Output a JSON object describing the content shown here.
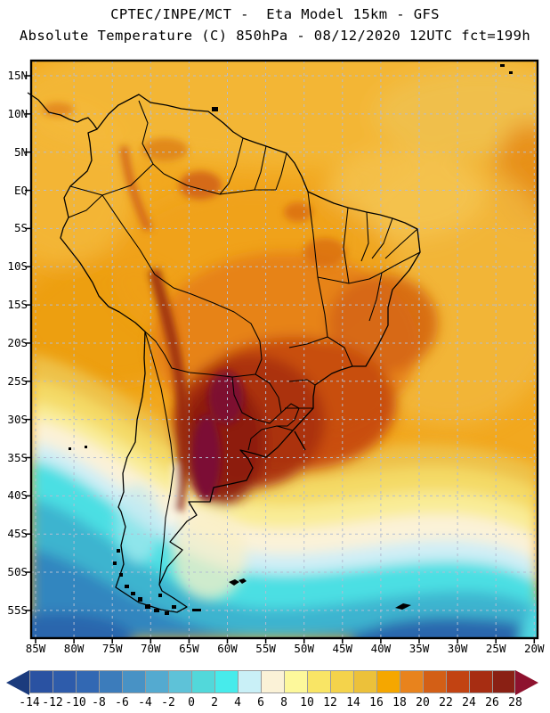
{
  "header": {
    "title_line1": "CPTEC/INPE/MCT -  Eta Model 15km - GFS",
    "title_line2": "Absolute Temperature (C) 850hPa - 08/12/2020 12UTC fct=199h"
  },
  "map": {
    "lat_tick_labels": [
      "15N",
      "10N",
      "5N",
      "EQ",
      "5S",
      "10S",
      "15S",
      "20S",
      "25S",
      "30S",
      "35S",
      "40S",
      "45S",
      "50S",
      "55S"
    ],
    "lon_tick_labels": [
      "85W",
      "80W",
      "75W",
      "70W",
      "65W",
      "60W",
      "55W",
      "50W",
      "45W",
      "40W",
      "35W",
      "30W",
      "25W",
      "20W"
    ],
    "grid_color": "#b3bdd2",
    "coastline_color": "#000000",
    "frame_color": "#000000"
  },
  "colorbar": {
    "tick_labels": [
      "-14",
      "-12",
      "-10",
      "-8",
      "-6",
      "-4",
      "-2",
      "0",
      "2",
      "4",
      "6",
      "8",
      "10",
      "12",
      "14",
      "16",
      "18",
      "20",
      "22",
      "24",
      "26",
      "28"
    ],
    "box_colors": [
      "#2a52a2",
      "#2e5cab",
      "#3268b3",
      "#3c7cbb",
      "#4892c5",
      "#54aad0",
      "#5ec2d8",
      "#52d8da",
      "#47ebeb",
      "#c9f0f7",
      "#fbf2d7",
      "#fdf89b",
      "#f9e565",
      "#f4d34b",
      "#ecc13a",
      "#f5a700",
      "#e8831d",
      "#d35f16",
      "#c24312",
      "#a72d12",
      "#8a2014"
    ],
    "left_arrow_color": "#1b3b7d",
    "right_arrow_color": "#8e122e"
  },
  "chart_data": {
    "type": "heatmap",
    "title": "CPTEC/INPE/MCT -  Eta Model 15km - GFS",
    "subtitle": "Absolute Temperature (C) 850hPa - 08/12/2020 12UTC fct=199h",
    "variable": "Absolute Temperature",
    "units": "C",
    "level": "850hPa",
    "valid_time": "08/12/2020 12UTC fct=199h",
    "x_tick_labels": [
      "85W",
      "80W",
      "75W",
      "70W",
      "65W",
      "60W",
      "55W",
      "50W",
      "45W",
      "40W",
      "35W",
      "30W",
      "25W",
      "20W"
    ],
    "y_tick_labels": [
      "15N",
      "10N",
      "5N",
      "EQ",
      "5S",
      "10S",
      "15S",
      "20S",
      "25S",
      "30S",
      "35S",
      "40S",
      "45S",
      "50S",
      "55S"
    ],
    "scale_values": [
      -14,
      -12,
      -10,
      -8,
      -6,
      -4,
      -2,
      0,
      2,
      4,
      6,
      8,
      10,
      12,
      14,
      16,
      18,
      20,
      22,
      24,
      26,
      28
    ],
    "scale_colors": [
      "#1b3b7d",
      "#2a52a2",
      "#2e5cab",
      "#3268b3",
      "#3c7cbb",
      "#4892c5",
      "#54aad0",
      "#5ec2d8",
      "#52d8da",
      "#47ebeb",
      "#c9f0f7",
      "#fbf2d7",
      "#fdf89b",
      "#f9e565",
      "#f4d34b",
      "#ecc13a",
      "#f5a700",
      "#e8831d",
      "#d35f16",
      "#c24312",
      "#a72d12",
      "#8a2014",
      "#8e122e"
    ],
    "legend_position": "bottom",
    "grid": "dashed"
  }
}
